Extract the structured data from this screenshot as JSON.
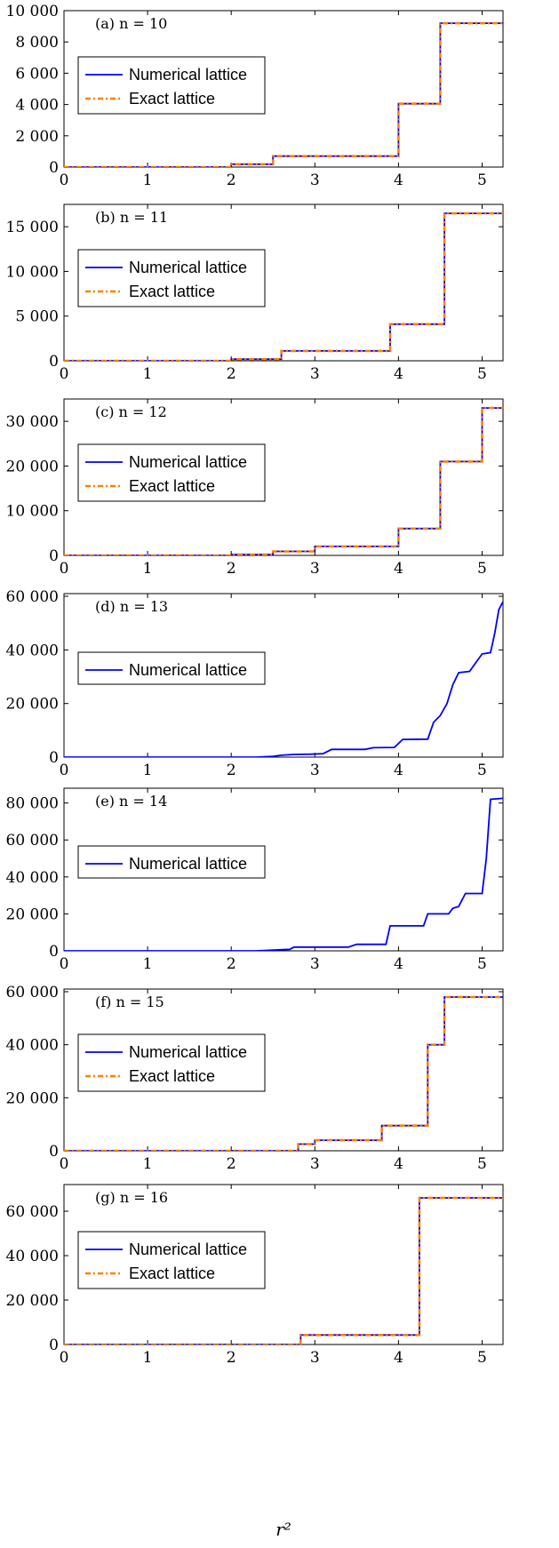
{
  "chart_data": [
    {
      "type": "line",
      "label": "(a) n = 10",
      "xlim": [
        0,
        5.25
      ],
      "ylim": [
        0,
        10000
      ],
      "yticks": [
        0,
        2000,
        4000,
        6000,
        8000,
        10000
      ],
      "ytick_labels": [
        "0",
        "2 000",
        "4 000",
        "6 000",
        "8 000",
        "10 000"
      ],
      "xticks": [
        0,
        1,
        2,
        3,
        4,
        5
      ],
      "xtick_labels": [
        "0",
        "1",
        "2",
        "3",
        "4",
        "5"
      ],
      "series": [
        {
          "name": "Numerical lattice",
          "color": "#0000ff",
          "style": "solid",
          "x": [
            0,
            2.0,
            2.0,
            2.5,
            2.5,
            4.0,
            4.0,
            4.5,
            4.5,
            5.25
          ],
          "y": [
            0,
            0,
            180,
            180,
            700,
            700,
            4050,
            4050,
            9200,
            9200
          ]
        },
        {
          "name": "Exact lattice",
          "color": "#ff8000",
          "style": "dashdot",
          "x": [
            0,
            2.0,
            2.0,
            2.5,
            2.5,
            4.0,
            4.0,
            4.5,
            4.5,
            5.25
          ],
          "y": [
            0,
            0,
            180,
            180,
            700,
            700,
            4050,
            4050,
            9200,
            9200
          ]
        }
      ]
    },
    {
      "type": "line",
      "label": "(b) n = 11",
      "xlim": [
        0,
        5.25
      ],
      "ylim": [
        0,
        17500
      ],
      "yticks": [
        0,
        5000,
        10000,
        15000
      ],
      "ytick_labels": [
        "0",
        "5 000",
        "10 000",
        "15 000"
      ],
      "xticks": [
        0,
        1,
        2,
        3,
        4,
        5
      ],
      "xtick_labels": [
        "0",
        "1",
        "2",
        "3",
        "4",
        "5"
      ],
      "series": [
        {
          "name": "Numerical lattice",
          "color": "#0000ff",
          "style": "solid",
          "x": [
            0,
            2.0,
            2.0,
            2.6,
            2.6,
            3.9,
            3.9,
            4.55,
            4.55,
            5.25
          ],
          "y": [
            0,
            0,
            180,
            180,
            1100,
            1100,
            4100,
            4100,
            16500,
            16500
          ]
        },
        {
          "name": "Exact lattice",
          "color": "#ff8000",
          "style": "dashdot",
          "x": [
            0,
            2.0,
            2.0,
            2.6,
            2.6,
            3.9,
            3.9,
            4.55,
            4.55,
            5.25
          ],
          "y": [
            0,
            0,
            180,
            180,
            1100,
            1100,
            4100,
            4100,
            16500,
            16500
          ]
        }
      ]
    },
    {
      "type": "line",
      "label": "(c) n = 12",
      "xlim": [
        0,
        5.25
      ],
      "ylim": [
        0,
        35000
      ],
      "yticks": [
        0,
        10000,
        20000,
        30000
      ],
      "ytick_labels": [
        "0",
        "10 000",
        "20 000",
        "30 000"
      ],
      "xticks": [
        0,
        1,
        2,
        3,
        4,
        5
      ],
      "xtick_labels": [
        "0",
        "1",
        "2",
        "3",
        "4",
        "5"
      ],
      "series": [
        {
          "name": "Numerical lattice",
          "color": "#0000ff",
          "style": "solid",
          "x": [
            0,
            2.0,
            2.0,
            2.5,
            2.5,
            3.0,
            3.0,
            4.0,
            4.0,
            4.5,
            4.5,
            5.0,
            5.0,
            5.25
          ],
          "y": [
            0,
            0,
            200,
            200,
            900,
            900,
            2000,
            2000,
            6000,
            6000,
            21000,
            21000,
            33000,
            33000
          ]
        },
        {
          "name": "Exact lattice",
          "color": "#ff8000",
          "style": "dashdot",
          "x": [
            0,
            2.0,
            2.0,
            2.5,
            2.5,
            3.0,
            3.0,
            4.0,
            4.0,
            4.5,
            4.5,
            5.0,
            5.0,
            5.25
          ],
          "y": [
            0,
            0,
            200,
            200,
            900,
            900,
            2000,
            2000,
            6000,
            6000,
            21000,
            21000,
            33000,
            33000
          ]
        }
      ]
    },
    {
      "type": "line",
      "label": "(d) n = 13",
      "xlim": [
        0,
        5.25
      ],
      "ylim": [
        0,
        61000
      ],
      "yticks": [
        0,
        20000,
        40000,
        60000
      ],
      "ytick_labels": [
        "0",
        "20 000",
        "40 000",
        "60 000"
      ],
      "xticks": [
        0,
        1,
        2,
        3,
        4,
        5
      ],
      "xtick_labels": [
        "0",
        "1",
        "2",
        "3",
        "4",
        "5"
      ],
      "series": [
        {
          "name": "Numerical lattice",
          "color": "#0000ff",
          "style": "solid",
          "x": [
            0,
            2.3,
            2.5,
            2.6,
            2.75,
            2.95,
            3.1,
            3.2,
            3.6,
            3.7,
            3.95,
            4.05,
            4.35,
            4.42,
            4.5,
            4.58,
            4.65,
            4.72,
            4.85,
            4.92,
            5.0,
            5.1,
            5.15,
            5.2,
            5.25
          ],
          "y": [
            0,
            0,
            300,
            700,
            1000,
            1100,
            1300,
            2900,
            2900,
            3500,
            3600,
            6600,
            6700,
            13000,
            15500,
            20000,
            27000,
            31500,
            32000,
            35000,
            38500,
            39000,
            46000,
            55000,
            58000
          ]
        }
      ]
    },
    {
      "type": "line",
      "label": "(e) n = 14",
      "xlim": [
        0,
        5.25
      ],
      "ylim": [
        0,
        88000
      ],
      "yticks": [
        0,
        20000,
        40000,
        60000,
        80000
      ],
      "ytick_labels": [
        "0",
        "20 000",
        "40 000",
        "60 000",
        "80 000"
      ],
      "xticks": [
        0,
        1,
        2,
        3,
        4,
        5
      ],
      "xtick_labels": [
        "0",
        "1",
        "2",
        "3",
        "4",
        "5"
      ],
      "series": [
        {
          "name": "Numerical lattice",
          "color": "#0000ff",
          "style": "solid",
          "x": [
            0,
            2.3,
            2.7,
            2.75,
            3.4,
            3.5,
            3.85,
            3.9,
            4.3,
            4.35,
            4.6,
            4.65,
            4.72,
            4.8,
            5.0,
            5.05,
            5.1,
            5.25
          ],
          "y": [
            0,
            0,
            800,
            2000,
            2000,
            3500,
            3500,
            13500,
            13500,
            20000,
            20000,
            23000,
            24000,
            31000,
            31000,
            50000,
            82000,
            82500
          ]
        }
      ]
    },
    {
      "type": "line",
      "label": "(f) n = 15",
      "xlim": [
        0,
        5.25
      ],
      "ylim": [
        0,
        61000
      ],
      "yticks": [
        0,
        20000,
        40000,
        60000
      ],
      "ytick_labels": [
        "0",
        "20 000",
        "40 000",
        "60 000"
      ],
      "xticks": [
        0,
        1,
        2,
        3,
        4,
        5
      ],
      "xtick_labels": [
        "0",
        "1",
        "2",
        "3",
        "4",
        "5"
      ],
      "series": [
        {
          "name": "Numerical lattice",
          "color": "#0000ff",
          "style": "solid",
          "x": [
            0,
            2.8,
            2.8,
            3.0,
            3.0,
            3.8,
            3.8,
            4.35,
            4.35,
            4.55,
            4.55,
            5.25
          ],
          "y": [
            0,
            0,
            2500,
            2500,
            4000,
            4000,
            9500,
            9500,
            40000,
            40000,
            58000,
            58000
          ]
        },
        {
          "name": "Exact lattice",
          "color": "#ff8000",
          "style": "dashdot",
          "x": [
            0,
            2.8,
            2.8,
            3.0,
            3.0,
            3.8,
            3.8,
            4.35,
            4.35,
            4.55,
            4.55,
            5.25
          ],
          "y": [
            0,
            0,
            2500,
            2500,
            4000,
            4000,
            9500,
            9500,
            40000,
            40000,
            58000,
            58000
          ]
        }
      ]
    },
    {
      "type": "line",
      "label": "(g) n = 16",
      "xlim": [
        0,
        5.25
      ],
      "ylim": [
        0,
        72000
      ],
      "yticks": [
        0,
        20000,
        40000,
        60000
      ],
      "ytick_labels": [
        "0",
        "20 000",
        "40 000",
        "60 000"
      ],
      "xticks": [
        0,
        1,
        2,
        3,
        4,
        5
      ],
      "xtick_labels": [
        "0",
        "1",
        "2",
        "3",
        "4",
        "5"
      ],
      "series": [
        {
          "name": "Numerical lattice",
          "color": "#0000ff",
          "style": "solid",
          "x": [
            0,
            2.83,
            2.83,
            4.25,
            4.25,
            5.25
          ],
          "y": [
            0,
            0,
            4300,
            4300,
            66000,
            66000
          ]
        },
        {
          "name": "Exact lattice",
          "color": "#ff8000",
          "style": "dashdot",
          "x": [
            0,
            2.83,
            2.83,
            4.25,
            4.25,
            5.25
          ],
          "y": [
            0,
            0,
            4300,
            4300,
            66000,
            66000
          ]
        }
      ]
    }
  ],
  "xlabel": "r²"
}
